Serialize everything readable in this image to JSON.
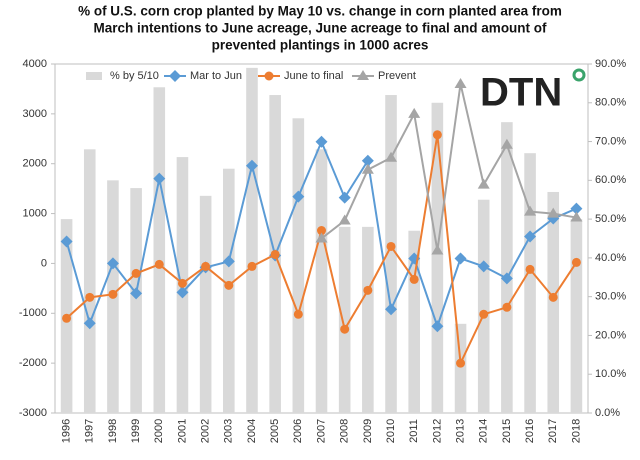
{
  "chart_data": {
    "type": "combo",
    "title": [
      "%  of U.S. corn crop planted by May 10 vs. change in corn planted area from",
      "March intentions to June acreage, June acreage to final and amount of",
      "prevented plantings in 1000 acres"
    ],
    "logo": "DTN",
    "categories": [
      "1996",
      "1997",
      "1998",
      "1999",
      "2000",
      "2001",
      "2002",
      "2003",
      "2004",
      "2005",
      "2006",
      "2007",
      "2008",
      "2009",
      "2010",
      "2011",
      "2012",
      "2013",
      "2014",
      "2015",
      "2016",
      "2017",
      "2018"
    ],
    "series": [
      {
        "name": "% by 5/10",
        "kind": "bar",
        "axis": "y2",
        "color": "#d9d9d9",
        "values": [
          50,
          68,
          60,
          58,
          84,
          66,
          56,
          63,
          89,
          82,
          76,
          68,
          48,
          48,
          82,
          47,
          80,
          23,
          55,
          75,
          67,
          57,
          50
        ]
      },
      {
        "name": "Mar to Jun",
        "kind": "line",
        "marker": "diamond",
        "color": "#5b9bd5",
        "values": [
          440,
          -1200,
          0,
          -600,
          1700,
          -580,
          -80,
          40,
          1960,
          160,
          1340,
          2440,
          1320,
          2060,
          -920,
          100,
          -1260,
          100,
          -60,
          -300,
          540,
          900,
          1100
        ]
      },
      {
        "name": "June to final",
        "kind": "line",
        "marker": "circle",
        "color": "#ed7d31",
        "values": [
          -1100,
          -680,
          -620,
          -200,
          -20,
          -400,
          -60,
          -440,
          -60,
          180,
          -1020,
          660,
          -1320,
          -540,
          340,
          -320,
          2580,
          -2000,
          -1020,
          -880,
          -120,
          -680,
          20
        ]
      },
      {
        "name": "Prevent",
        "kind": "line",
        "marker": "triangle",
        "color": "#a5a5a5",
        "values": [
          null,
          null,
          null,
          null,
          null,
          null,
          null,
          null,
          null,
          null,
          null,
          500,
          860,
          1880,
          2120,
          3000,
          260,
          3600,
          1580,
          2380,
          1040,
          1000,
          920
        ]
      }
    ],
    "ylim": [
      -3000,
      4000
    ],
    "yticks": [
      -3000,
      -2000,
      -1000,
      0,
      1000,
      2000,
      3000,
      4000
    ],
    "y2lim": [
      0,
      90
    ],
    "y2ticks": [
      {
        "value": 0,
        "label": "0.0%"
      },
      {
        "value": 10,
        "label": "10.0%"
      },
      {
        "value": 20,
        "label": "20.0%"
      },
      {
        "value": 30,
        "label": "30.0%"
      },
      {
        "value": 40,
        "label": "40.0%"
      },
      {
        "value": 50,
        "label": "50.0%"
      },
      {
        "value": 60,
        "label": "60.0%"
      },
      {
        "value": 70,
        "label": "70.0%"
      },
      {
        "value": 80,
        "label": "80.0%"
      },
      {
        "value": 90,
        "label": "90.0%"
      }
    ],
    "legend": "top"
  }
}
